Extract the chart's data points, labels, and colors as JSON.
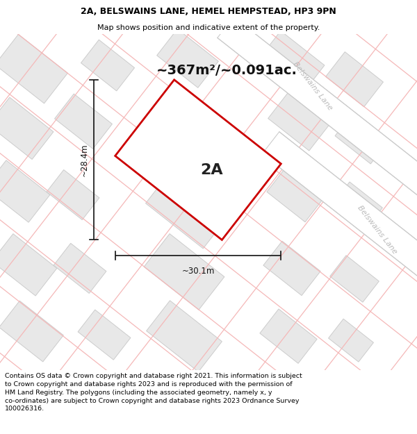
{
  "title_line1": "2A, BELSWAINS LANE, HEMEL HEMPSTEAD, HP3 9PN",
  "title_line2": "Map shows position and indicative extent of the property.",
  "area_label": "~367m²/~0.091ac.",
  "plot_label": "2A",
  "width_label": "~30.1m",
  "height_label": "~28.4m",
  "footer_text": "Contains OS data © Crown copyright and database right 2021. This information is subject to Crown copyright and database rights 2023 and is reproduced with the permission of HM Land Registry. The polygons (including the associated geometry, namely x, y co-ordinates) are subject to Crown copyright and database rights 2023 Ordnance Survey 100026316.",
  "plot_edge": "#cc0000",
  "pink_line_color": "#f5b8b8",
  "block_face": "#e8e8e8",
  "block_edge": "#cccccc",
  "road_face": "#e4e4e4",
  "road_edge": "#cccccc",
  "dim_line_color": "#111111",
  "street_color": "#bbbbbb",
  "street_label_upper": "Belswains Lane",
  "street_label_lower": "Belswains Lane",
  "title_fontsize": 9,
  "subtitle_fontsize": 8,
  "area_fontsize": 14,
  "plot_label_fontsize": 16,
  "dim_fontsize": 8.5,
  "street_fontsize": 8,
  "footer_fontsize": 6.8
}
